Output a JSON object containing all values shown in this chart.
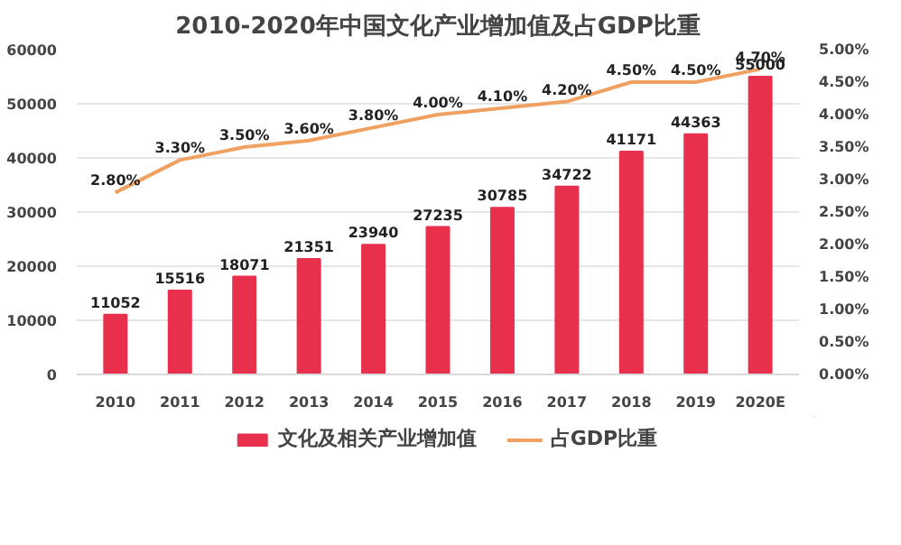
{
  "chart_data": {
    "type": "bar",
    "title": "2010-2020年中国文化产业增加值及占GDP比重",
    "categories": [
      "2010",
      "2011",
      "2012",
      "2013",
      "2014",
      "2015",
      "2016",
      "2017",
      "2018",
      "2019",
      "2020E"
    ],
    "series": [
      {
        "name": "文化及相关产业增加值",
        "color": "#e8304c",
        "values": [
          11052,
          15516,
          18071,
          21351,
          23940,
          27235,
          30785,
          34722,
          41171,
          44363,
          55000
        ],
        "value_labels": [
          "11052",
          "15516",
          "18071",
          "21351",
          "23940",
          "27235",
          "30785",
          "34722",
          "41171",
          "44363",
          "55000"
        ]
      },
      {
        "name": "占GDP比重",
        "type": "line",
        "axis": "y2",
        "color": "#f0a060",
        "values": [
          2.8,
          3.3,
          3.5,
          3.6,
          3.8,
          4.0,
          4.1,
          4.2,
          4.5,
          4.5,
          4.7
        ],
        "value_labels": [
          "2.80%",
          "3.30%",
          "3.50%",
          "3.60%",
          "3.80%",
          "4.00%",
          "4.10%",
          "4.20%",
          "4.50%",
          "4.50%",
          "4.70%"
        ]
      }
    ],
    "ylim": [
      0,
      60000
    ],
    "yticks": [
      0,
      10000,
      20000,
      30000,
      40000,
      50000,
      60000
    ],
    "y2lim": [
      0,
      5
    ],
    "y2ticks": [
      {
        "value": 0,
        "label": "0.00%"
      },
      {
        "value": 0.5,
        "label": "0.50%"
      },
      {
        "value": 1,
        "label": "1.00%"
      },
      {
        "value": 1.5,
        "label": "1.50%"
      },
      {
        "value": 2,
        "label": "2.00%"
      },
      {
        "value": 2.5,
        "label": "2.50%"
      },
      {
        "value": 3,
        "label": "3.00%"
      },
      {
        "value": 3.5,
        "label": "3.50%"
      },
      {
        "value": 4,
        "label": "4.00%"
      },
      {
        "value": 4.5,
        "label": "4.50%"
      },
      {
        "value": 5,
        "label": "5.00%"
      }
    ],
    "grid": "y",
    "legend": "bottom",
    "marker": "none",
    "line_style": "solid"
  }
}
